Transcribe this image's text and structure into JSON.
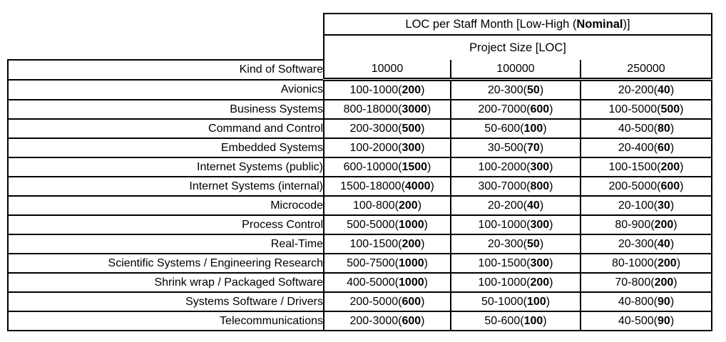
{
  "page": {
    "background": "#ffffff",
    "text_color": "#000000",
    "border_color": "#000000"
  },
  "table": {
    "header": {
      "title_prefix": "LOC per Staff Month [Low-High (",
      "title_bold": "Nominal",
      "title_suffix": ")]",
      "subtitle": "Project Size [LOC]",
      "row_label": "Kind of Software",
      "sizes": [
        "10000",
        "100000",
        "250000"
      ]
    },
    "format": {
      "open": "(",
      "close": ")"
    },
    "rows": [
      {
        "kind": "Avionics",
        "values": [
          {
            "low_high": "100-1000",
            "nominal": "200"
          },
          {
            "low_high": "20-300",
            "nominal": "50"
          },
          {
            "low_high": "20-200",
            "nominal": "40"
          }
        ]
      },
      {
        "kind": "Business Systems",
        "values": [
          {
            "low_high": "800-18000",
            "nominal": "3000"
          },
          {
            "low_high": "200-7000",
            "nominal": "600"
          },
          {
            "low_high": "100-5000",
            "nominal": "500"
          }
        ]
      },
      {
        "kind": "Command and Control",
        "values": [
          {
            "low_high": "200-3000",
            "nominal": "500"
          },
          {
            "low_high": "50-600",
            "nominal": "100"
          },
          {
            "low_high": "40-500",
            "nominal": "80"
          }
        ]
      },
      {
        "kind": "Embedded Systems",
        "values": [
          {
            "low_high": "100-2000",
            "nominal": "300"
          },
          {
            "low_high": "30-500",
            "nominal": "70"
          },
          {
            "low_high": "20-400",
            "nominal": "60"
          }
        ]
      },
      {
        "kind": "Internet Systems (public)",
        "values": [
          {
            "low_high": "600-10000",
            "nominal": "1500"
          },
          {
            "low_high": "100-2000",
            "nominal": "300"
          },
          {
            "low_high": "100-1500",
            "nominal": "200"
          }
        ]
      },
      {
        "kind": "Internet Systems (internal)",
        "values": [
          {
            "low_high": "1500-18000",
            "nominal": "4000"
          },
          {
            "low_high": "300-7000",
            "nominal": "800"
          },
          {
            "low_high": "200-5000",
            "nominal": "600"
          }
        ]
      },
      {
        "kind": "Microcode",
        "values": [
          {
            "low_high": "100-800",
            "nominal": "200"
          },
          {
            "low_high": "20-200",
            "nominal": "40"
          },
          {
            "low_high": "20-100",
            "nominal": "30"
          }
        ]
      },
      {
        "kind": "Process Control",
        "values": [
          {
            "low_high": "500-5000",
            "nominal": "1000"
          },
          {
            "low_high": "100-1000",
            "nominal": "300"
          },
          {
            "low_high": "80-900",
            "nominal": "200"
          }
        ]
      },
      {
        "kind": "Real-Time",
        "values": [
          {
            "low_high": "100-1500",
            "nominal": "200"
          },
          {
            "low_high": "20-300",
            "nominal": "50"
          },
          {
            "low_high": "20-300",
            "nominal": "40"
          }
        ]
      },
      {
        "kind": "Scientific Systems / Engineering Research",
        "values": [
          {
            "low_high": "500-7500",
            "nominal": "1000"
          },
          {
            "low_high": "100-1500",
            "nominal": "300"
          },
          {
            "low_high": "80-1000",
            "nominal": "200"
          }
        ]
      },
      {
        "kind": "Shrink wrap / Packaged Software",
        "values": [
          {
            "low_high": "400-5000",
            "nominal": "1000"
          },
          {
            "low_high": "100-1000",
            "nominal": "200"
          },
          {
            "low_high": "70-800",
            "nominal": "200"
          }
        ]
      },
      {
        "kind": "Systems Software / Drivers",
        "values": [
          {
            "low_high": "200-5000",
            "nominal": "600"
          },
          {
            "low_high": "50-1000",
            "nominal": "100"
          },
          {
            "low_high": "40-800",
            "nominal": "90"
          }
        ]
      },
      {
        "kind": "Telecommunications",
        "values": [
          {
            "low_high": "200-3000",
            "nominal": "600"
          },
          {
            "low_high": "50-600",
            "nominal": "100"
          },
          {
            "low_high": "40-500",
            "nominal": "90"
          }
        ]
      }
    ]
  }
}
